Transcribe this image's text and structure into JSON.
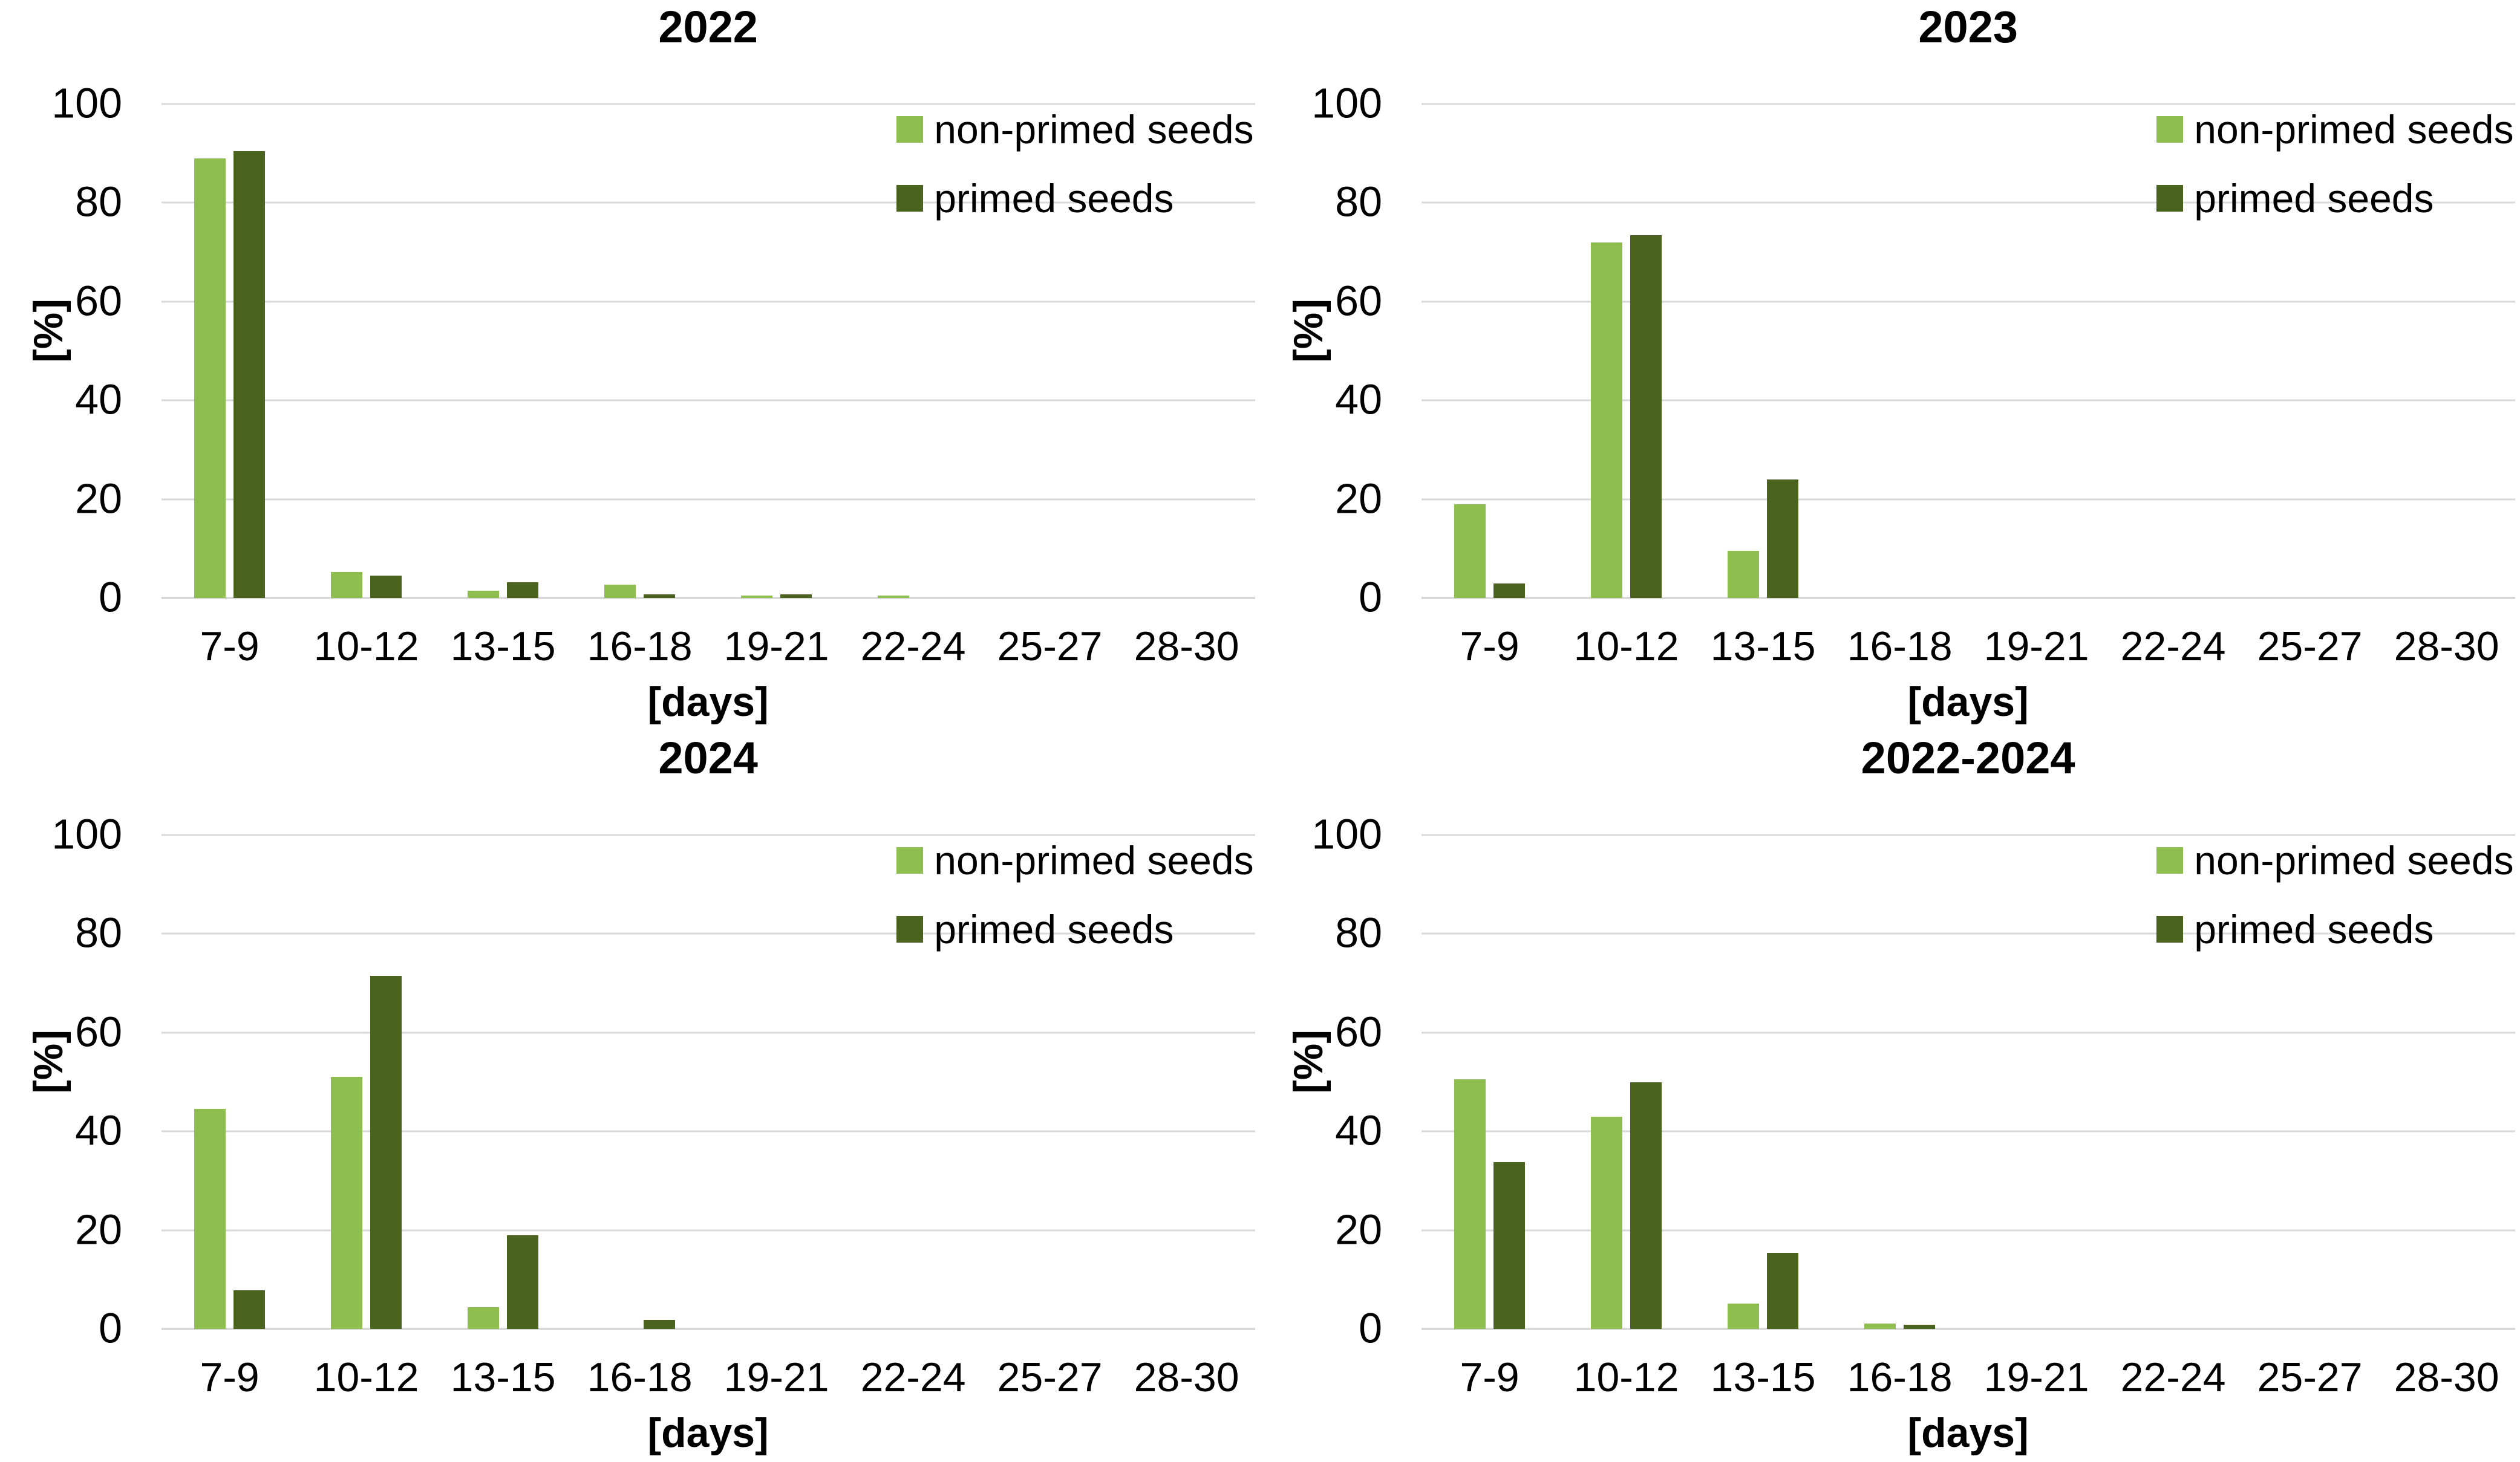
{
  "page": {
    "background": "#FFFFFF"
  },
  "colors": {
    "non_primed": "#8DBE4F",
    "primed": "#4A6420",
    "gridline": "#D9D9D9",
    "text": "#000000"
  },
  "legend": {
    "non_primed_label": "non-primed seeds",
    "primed_label": "primed seeds"
  },
  "axes": {
    "y_label": "[%]",
    "x_label": "[days]",
    "y_ticks": [
      0,
      20,
      40,
      60,
      80,
      100
    ],
    "y_max": 100
  },
  "categories": [
    "7-9",
    "10-12",
    "13-15",
    "16-18",
    "19-21",
    "22-24",
    "25-27",
    "28-30"
  ],
  "chart_data": [
    {
      "type": "bar",
      "title": "2022",
      "xlabel": "[days]",
      "ylabel": "[%]",
      "ylim": [
        0,
        100
      ],
      "grid": true,
      "legend_position": "top-right",
      "categories": [
        "7-9",
        "10-12",
        "13-15",
        "16-18",
        "19-21",
        "22-24",
        "25-27",
        "28-30"
      ],
      "series": [
        {
          "name": "non-primed seeds",
          "values": [
            89,
            5.3,
            1.5,
            2.7,
            0.5,
            0.5,
            0,
            0
          ]
        },
        {
          "name": "primed seeds",
          "values": [
            90.5,
            4.5,
            3.2,
            0.8,
            0.7,
            0,
            0,
            0
          ]
        }
      ]
    },
    {
      "type": "bar",
      "title": "2023",
      "xlabel": "[days]",
      "ylabel": "[%]",
      "ylim": [
        0,
        100
      ],
      "grid": true,
      "legend_position": "top-right",
      "categories": [
        "7-9",
        "10-12",
        "13-15",
        "16-18",
        "19-21",
        "22-24",
        "25-27",
        "28-30"
      ],
      "series": [
        {
          "name": "non-primed seeds",
          "values": [
            19,
            72,
            9.5,
            0,
            0,
            0,
            0,
            0
          ]
        },
        {
          "name": "primed seeds",
          "values": [
            3,
            73.5,
            24,
            0,
            0,
            0,
            0,
            0
          ]
        }
      ]
    },
    {
      "type": "bar",
      "title": "2024",
      "xlabel": "[days]",
      "ylabel": "[%]",
      "ylim": [
        0,
        100
      ],
      "grid": true,
      "legend_position": "top-right",
      "categories": [
        "7-9",
        "10-12",
        "13-15",
        "16-18",
        "19-21",
        "22-24",
        "25-27",
        "28-30"
      ],
      "series": [
        {
          "name": "non-primed seeds",
          "values": [
            44.5,
            51,
            4.4,
            0,
            0,
            0,
            0,
            0
          ]
        },
        {
          "name": "primed seeds",
          "values": [
            7.8,
            71.5,
            19,
            1.8,
            0,
            0,
            0,
            0
          ]
        }
      ]
    },
    {
      "type": "bar",
      "title": "2022-2024",
      "xlabel": "[days]",
      "ylabel": "[%]",
      "ylim": [
        0,
        100
      ],
      "grid": true,
      "legend_position": "top-right",
      "categories": [
        "7-9",
        "10-12",
        "13-15",
        "16-18",
        "19-21",
        "22-24",
        "25-27",
        "28-30"
      ],
      "series": [
        {
          "name": "non-primed seeds",
          "values": [
            50.5,
            43,
            5.1,
            1.1,
            0,
            0,
            0,
            0
          ]
        },
        {
          "name": "primed seeds",
          "values": [
            33.8,
            50,
            15.4,
            0.9,
            0,
            0,
            0,
            0
          ]
        }
      ]
    }
  ]
}
